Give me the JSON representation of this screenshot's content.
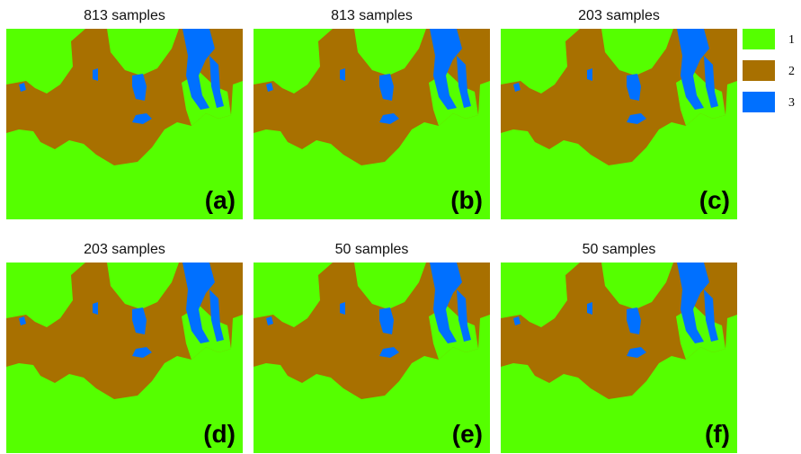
{
  "panels": [
    {
      "title": "813 samples",
      "label": "(a)"
    },
    {
      "title": "813 samples",
      "label": "(b)"
    },
    {
      "title": "203 samples",
      "label": "(c)"
    },
    {
      "title": "203 samples",
      "label": "(d)"
    },
    {
      "title": "50 samples",
      "label": "(e)"
    },
    {
      "title": "50 samples",
      "label": "(f)"
    }
  ],
  "legend": {
    "items": [
      {
        "label": "1",
        "color": "#55ff00"
      },
      {
        "label": "2",
        "color": "#a87000"
      },
      {
        "label": "3",
        "color": "#0070ff"
      }
    ]
  }
}
